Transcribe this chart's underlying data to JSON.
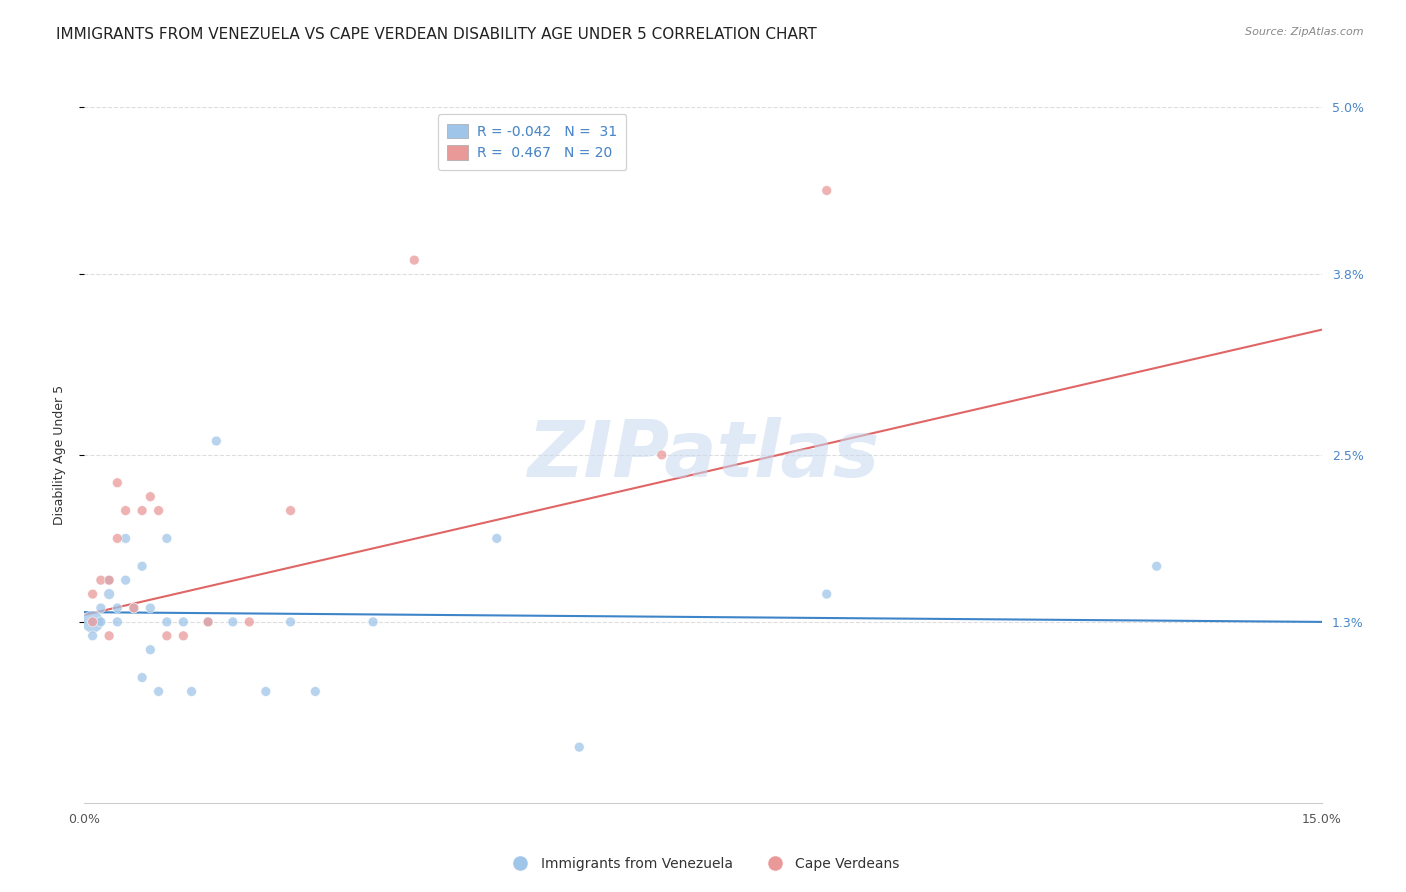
{
  "title": "IMMIGRANTS FROM VENEZUELA VS CAPE VERDEAN DISABILITY AGE UNDER 5 CORRELATION CHART",
  "source": "Source: ZipAtlas.com",
  "ylabel": "Disability Age Under 5",
  "x_min": 0.0,
  "x_max": 0.15,
  "y_min": 0.0,
  "y_max": 0.05,
  "y_ticks": [
    0.013,
    0.025,
    0.038,
    0.05
  ],
  "y_tick_labels": [
    "1.3%",
    "2.5%",
    "3.8%",
    "5.0%"
  ],
  "x_ticks": [
    0.0,
    0.025,
    0.05,
    0.075,
    0.1,
    0.125,
    0.15
  ],
  "x_tick_labels": [
    "0.0%",
    "",
    "",
    "",
    "",
    "",
    "15.0%"
  ],
  "blue_color": "#9fc5e8",
  "pink_color": "#ea9999",
  "blue_line_color": "#3d85c8",
  "pink_line_color": "#e06666",
  "tick_color": "#4a86c8",
  "watermark": "ZIPatlas",
  "venezuela_x": [
    0.001,
    0.001,
    0.002,
    0.002,
    0.003,
    0.003,
    0.004,
    0.004,
    0.005,
    0.005,
    0.006,
    0.007,
    0.007,
    0.008,
    0.008,
    0.009,
    0.01,
    0.01,
    0.012,
    0.013,
    0.015,
    0.016,
    0.018,
    0.022,
    0.025,
    0.028,
    0.035,
    0.05,
    0.06,
    0.09,
    0.13
  ],
  "venezuela_y": [
    0.013,
    0.012,
    0.014,
    0.013,
    0.016,
    0.015,
    0.014,
    0.013,
    0.016,
    0.019,
    0.014,
    0.017,
    0.009,
    0.011,
    0.014,
    0.008,
    0.013,
    0.019,
    0.013,
    0.008,
    0.013,
    0.026,
    0.013,
    0.008,
    0.013,
    0.008,
    0.013,
    0.019,
    0.004,
    0.015,
    0.017
  ],
  "venezuela_sizes": [
    250,
    50,
    50,
    50,
    50,
    60,
    50,
    50,
    50,
    50,
    50,
    50,
    50,
    50,
    50,
    50,
    50,
    50,
    50,
    50,
    50,
    50,
    50,
    50,
    50,
    50,
    50,
    50,
    50,
    50,
    50
  ],
  "capeverde_x": [
    0.001,
    0.001,
    0.002,
    0.003,
    0.003,
    0.004,
    0.004,
    0.005,
    0.006,
    0.007,
    0.008,
    0.009,
    0.01,
    0.012,
    0.015,
    0.02,
    0.025,
    0.04,
    0.07,
    0.09
  ],
  "capeverde_y": [
    0.013,
    0.015,
    0.016,
    0.012,
    0.016,
    0.019,
    0.023,
    0.021,
    0.014,
    0.021,
    0.022,
    0.021,
    0.012,
    0.012,
    0.013,
    0.013,
    0.021,
    0.039,
    0.025,
    0.044
  ],
  "capeverde_sizes": [
    50,
    50,
    50,
    50,
    50,
    50,
    50,
    50,
    50,
    50,
    50,
    50,
    50,
    50,
    50,
    50,
    50,
    50,
    50,
    50
  ],
  "blue_line_x": [
    0.0,
    0.15
  ],
  "blue_line_y": [
    0.0137,
    0.013
  ],
  "pink_line_x": [
    0.0,
    0.15
  ],
  "pink_line_y": [
    0.0135,
    0.034
  ],
  "grid_color": "#dddddd",
  "background_color": "#ffffff",
  "title_fontsize": 11,
  "axis_label_fontsize": 9,
  "tick_fontsize": 9,
  "legend_fontsize": 10
}
